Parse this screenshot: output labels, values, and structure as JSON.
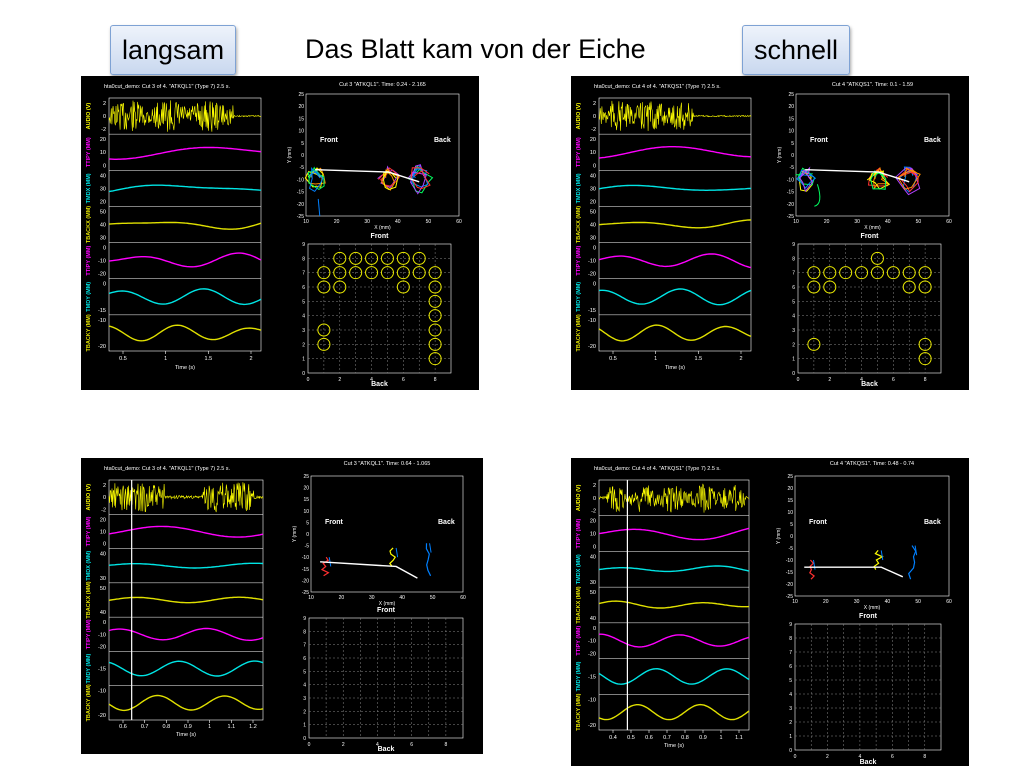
{
  "slide": {
    "title": "Das Blatt kam von der Eiche",
    "label_left": "langsam",
    "label_right": "schnell"
  },
  "colors": {
    "audio": "#ffff00",
    "ttipy": "#ff00ff",
    "tmdx": "#00e5e5",
    "tbackx": "#e0e000",
    "ttipy2": "#ff00ff",
    "tmdy": "#00e5e5",
    "tbacky": "#e0e000"
  },
  "chart_data": [
    {
      "type": "line",
      "panel": "top-left",
      "header": "hta0cut_demo: Cut 3 of 4. \"ATKQL1\" (Type 7) 2.5 s.",
      "xlabel": "Time (s)",
      "x_ticks": [
        "0.5",
        "1",
        "1.5",
        "2"
      ],
      "tracks": [
        {
          "label": "AUDIO (V)",
          "ticks": [
            "2",
            "0",
            "-2"
          ]
        },
        {
          "label": "TTIPY (MM)",
          "ticks": [
            "20",
            "10",
            "0"
          ]
        },
        {
          "label": "TMDX (MM)",
          "ticks": [
            "40",
            "30",
            "20"
          ]
        },
        {
          "label": "TBACKX (MM)",
          "ticks": [
            "50",
            "40",
            "30"
          ]
        },
        {
          "label": "TTIPY (MM)",
          "ticks": [
            "0",
            "-10",
            "-20"
          ]
        },
        {
          "label": "TMDY (MM)",
          "ticks": [
            "0",
            "-15"
          ]
        },
        {
          "label": "TBACKY (MM)",
          "ticks": [
            "-10",
            "-20"
          ]
        }
      ],
      "traj": {
        "header": "Cut 3 \"ATKQL1\". Time: 0.24 - 2.165",
        "xlabel": "X (mm)",
        "ylabel": "Y (mm)",
        "x_ticks": [
          "10",
          "20",
          "30",
          "40",
          "50",
          "60"
        ],
        "y_ticks": [
          "25",
          "20",
          "15",
          "10",
          "5",
          "0",
          "-5",
          "-10",
          "-15",
          "-20",
          "-25"
        ],
        "front": "Front",
        "back": "Back"
      },
      "grid": {
        "top_label": "Front",
        "bottom_label": "Back",
        "x_ticks": [
          "0",
          "2",
          "4",
          "6",
          "8"
        ],
        "y_ticks": [
          "9",
          "8",
          "7",
          "6",
          "5",
          "4",
          "3",
          "2",
          "1",
          "0"
        ],
        "contacts": [
          [
            2,
            8
          ],
          [
            3,
            8
          ],
          [
            4,
            8
          ],
          [
            5,
            8
          ],
          [
            6,
            8
          ],
          [
            7,
            8
          ],
          [
            1,
            7
          ],
          [
            2,
            7
          ],
          [
            3,
            7
          ],
          [
            4,
            7
          ],
          [
            5,
            7
          ],
          [
            6,
            7
          ],
          [
            7,
            7
          ],
          [
            8,
            7
          ],
          [
            1,
            6
          ],
          [
            2,
            6
          ],
          [
            6,
            6
          ],
          [
            8,
            6
          ],
          [
            8,
            5
          ],
          [
            8,
            4
          ],
          [
            1,
            3
          ],
          [
            8,
            3
          ],
          [
            1,
            2
          ],
          [
            8,
            2
          ],
          [
            8,
            1
          ]
        ]
      }
    },
    {
      "type": "line",
      "panel": "top-right",
      "header": "hta0cut_demo: Cut 4 of 4. \"ATKQS1\" (Type 7) 2.5 s.",
      "xlabel": "Time (s)",
      "x_ticks": [
        "0.5",
        "1",
        "1.5",
        "2"
      ],
      "tracks": [
        {
          "label": "AUDIO (V)",
          "ticks": [
            "2",
            "0",
            "-2"
          ]
        },
        {
          "label": "TTIPY (MM)",
          "ticks": [
            "20",
            "10",
            "0"
          ]
        },
        {
          "label": "TMDX (MM)",
          "ticks": [
            "40",
            "30",
            "20"
          ]
        },
        {
          "label": "TBACKX (MM)",
          "ticks": [
            "50",
            "40",
            "30"
          ]
        },
        {
          "label": "TTIPY (MM)",
          "ticks": [
            "0",
            "-10",
            "-20"
          ]
        },
        {
          "label": "TMDY (MM)",
          "ticks": [
            "0",
            "-15"
          ]
        },
        {
          "label": "TBACKY (MM)",
          "ticks": [
            "-10",
            "-20"
          ]
        }
      ],
      "traj": {
        "header": "Cut 4 \"ATKQS1\". Time: 0.1 - 1.59",
        "xlabel": "X (mm)",
        "ylabel": "Y (mm)",
        "x_ticks": [
          "10",
          "20",
          "30",
          "40",
          "50",
          "60"
        ],
        "y_ticks": [
          "25",
          "20",
          "15",
          "10",
          "5",
          "0",
          "-5",
          "-10",
          "-15",
          "-20",
          "-25"
        ],
        "front": "Front",
        "back": "Back"
      },
      "grid": {
        "top_label": "Front",
        "bottom_label": "Back",
        "x_ticks": [
          "0",
          "2",
          "4",
          "6",
          "8"
        ],
        "y_ticks": [
          "9",
          "8",
          "7",
          "6",
          "5",
          "4",
          "3",
          "2",
          "1",
          "0"
        ],
        "contacts": [
          [
            5,
            8
          ],
          [
            1,
            7
          ],
          [
            2,
            7
          ],
          [
            3,
            7
          ],
          [
            4,
            7
          ],
          [
            5,
            7
          ],
          [
            6,
            7
          ],
          [
            7,
            7
          ],
          [
            8,
            7
          ],
          [
            1,
            6
          ],
          [
            2,
            6
          ],
          [
            7,
            6
          ],
          [
            8,
            6
          ],
          [
            1,
            2
          ],
          [
            8,
            2
          ],
          [
            8,
            1
          ]
        ]
      }
    },
    {
      "type": "line",
      "panel": "bottom-left",
      "header": "hta0cut_demo: Cut 3 of 4. \"ATKQL1\" (Type 7) 2.5 s.",
      "xlabel": "Time (s)",
      "x_ticks": [
        "0.6",
        "0.7",
        "0.8",
        "0.9",
        "1",
        "1.1",
        "1.2"
      ],
      "cursor": 0.64,
      "tracks": [
        {
          "label": "AUDIO (V)",
          "ticks": [
            "2",
            "0",
            "-2"
          ]
        },
        {
          "label": "TTIPY (MM)",
          "ticks": [
            "20",
            "10",
            "0"
          ]
        },
        {
          "label": "TMDX (MM)",
          "ticks": [
            "40",
            "30"
          ]
        },
        {
          "label": "TBACKX (MM)",
          "ticks": [
            "50",
            "40"
          ]
        },
        {
          "label": "TTIPY (MM)",
          "ticks": [
            "0",
            "-10",
            "-20"
          ]
        },
        {
          "label": "TMDY (MM)",
          "ticks": [
            "-15"
          ]
        },
        {
          "label": "TBACKY (MM)",
          "ticks": [
            "-10",
            "-20"
          ]
        }
      ],
      "traj": {
        "header": "Cut 3 \"ATKQL1\". Time: 0.64 - 1.065",
        "xlabel": "X (mm)",
        "ylabel": "Y (mm)",
        "x_ticks": [
          "10",
          "20",
          "30",
          "40",
          "50",
          "60"
        ],
        "y_ticks": [
          "25",
          "20",
          "15",
          "10",
          "5",
          "0",
          "-5",
          "-10",
          "-15",
          "-20",
          "-25"
        ],
        "front": "Front",
        "back": "Back"
      },
      "grid": {
        "top_label": "Front",
        "bottom_label": "Back",
        "x_ticks": [
          "0",
          "2",
          "4",
          "6",
          "8"
        ],
        "y_ticks": [
          "9",
          "8",
          "7",
          "6",
          "5",
          "4",
          "3",
          "2",
          "1",
          "0"
        ],
        "contacts": []
      }
    },
    {
      "type": "line",
      "panel": "bottom-right",
      "header": "hta0cut_demo: Cut 4 of 4. \"ATKQS1\" (Type 7) 2.5 s.",
      "xlabel": "Time (s)",
      "x_ticks": [
        "0.4",
        "0.5",
        "0.6",
        "0.7",
        "0.8",
        "0.9",
        "1",
        "1.1"
      ],
      "cursor": 0.48,
      "tracks": [
        {
          "label": "AUDIO (V)",
          "ticks": [
            "2",
            "0",
            "-2"
          ]
        },
        {
          "label": "TTIPY (MM)",
          "ticks": [
            "20",
            "10",
            "0"
          ]
        },
        {
          "label": "TMDX (MM)",
          "ticks": [
            "40",
            "30"
          ]
        },
        {
          "label": "TBACKX (MM)",
          "ticks": [
            "50",
            "40"
          ]
        },
        {
          "label": "TTIPY (MM)",
          "ticks": [
            "0",
            "-10",
            "-20"
          ]
        },
        {
          "label": "TMDY (MM)",
          "ticks": [
            "-15"
          ]
        },
        {
          "label": "TBACKY (MM)",
          "ticks": [
            "-10",
            "-20"
          ]
        }
      ],
      "traj": {
        "header": "Cut 4 \"ATKQS1\". Time: 0.48 - 0.74",
        "xlabel": "X (mm)",
        "ylabel": "Y (mm)",
        "x_ticks": [
          "10",
          "20",
          "30",
          "40",
          "50",
          "60"
        ],
        "y_ticks": [
          "25",
          "20",
          "15",
          "10",
          "5",
          "0",
          "-5",
          "-10",
          "-15",
          "-20",
          "-25"
        ],
        "front": "Front",
        "back": "Back"
      },
      "grid": {
        "top_label": "Front",
        "bottom_label": "Back",
        "x_ticks": [
          "0",
          "2",
          "4",
          "6",
          "8"
        ],
        "y_ticks": [
          "9",
          "8",
          "7",
          "6",
          "5",
          "4",
          "3",
          "2",
          "1",
          "0"
        ],
        "contacts": []
      }
    }
  ]
}
